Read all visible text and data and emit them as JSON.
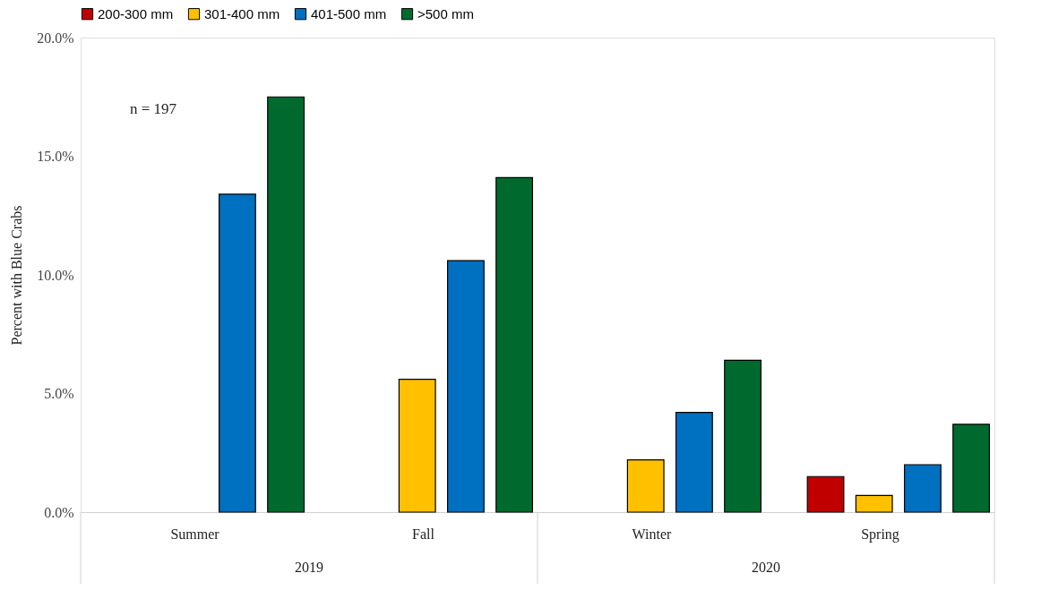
{
  "chart_data": {
    "type": "bar",
    "ylabel": "Percent with Blue Crabs",
    "categories": [
      "Summer",
      "Fall",
      "Winter",
      "Spring"
    ],
    "series": [
      {
        "name": "200-300 mm",
        "color": "#c00000",
        "values": [
          null,
          null,
          null,
          1.5
        ]
      },
      {
        "name": "301-400 mm",
        "color": "#ffc000",
        "values": [
          null,
          5.6,
          2.2,
          0.7
        ]
      },
      {
        "name": "401-500 mm",
        "color": "#0070c0",
        "values": [
          13.4,
          10.6,
          4.2,
          2.0
        ]
      },
      {
        "name": ">500 mm",
        "color": "#006a2e",
        "values": [
          17.5,
          14.1,
          6.4,
          3.7
        ]
      }
    ],
    "ylim": [
      0,
      20
    ],
    "yticks": [
      {
        "value": 0,
        "label": "0.0%"
      },
      {
        "value": 5,
        "label": "5.0%"
      },
      {
        "value": 10,
        "label": "10.0%"
      },
      {
        "value": 15,
        "label": "15.0%"
      },
      {
        "value": 20,
        "label": "20.0%"
      }
    ],
    "annotations": [
      "n = 197",
      "2019",
      "2020"
    ],
    "legend": "top",
    "grid": false
  }
}
